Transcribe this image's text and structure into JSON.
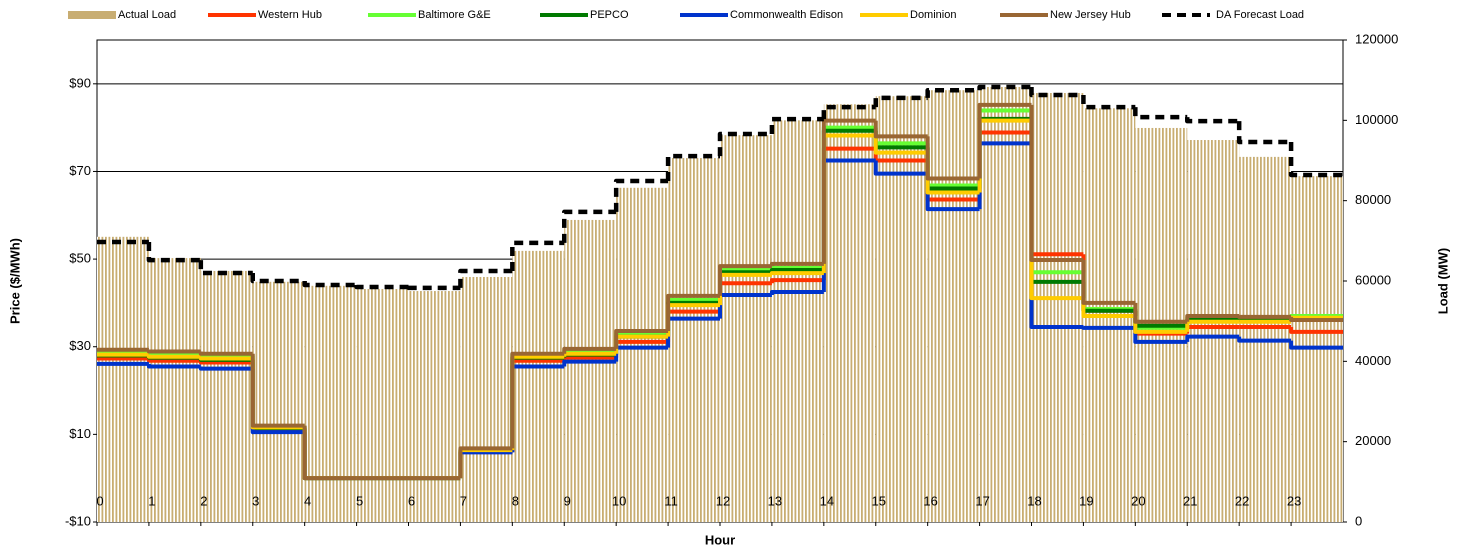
{
  "chart_data": {
    "type": "step",
    "xlabel": "Hour",
    "ylabel": "Price ($/MWh)",
    "y2label": "Load (MW)",
    "x": [
      0,
      1,
      2,
      3,
      4,
      5,
      6,
      7,
      8,
      9,
      10,
      11,
      12,
      13,
      14,
      15,
      16,
      17,
      18,
      19,
      20,
      21,
      22,
      23
    ],
    "xlim": [
      0,
      24
    ],
    "xticks": [
      0,
      1,
      2,
      3,
      4,
      5,
      6,
      7,
      8,
      9,
      10,
      11,
      12,
      13,
      14,
      15,
      16,
      17,
      18,
      19,
      20,
      21,
      22,
      23
    ],
    "ylim": [
      -10,
      100
    ],
    "yticks": [
      {
        "value": -10,
        "label": "-$10"
      },
      {
        "value": 10,
        "label": "$10"
      },
      {
        "value": 30,
        "label": "$30"
      },
      {
        "value": 50,
        "label": "$50"
      },
      {
        "value": 70,
        "label": "$70"
      },
      {
        "value": 90,
        "label": "$90"
      }
    ],
    "y2lim": [
      0,
      120000
    ],
    "y2ticks": [
      0,
      20000,
      40000,
      60000,
      80000,
      100000,
      120000
    ],
    "grid": true,
    "legend": "top",
    "series": [
      {
        "name": "Actual Load",
        "color": "#c8ad72",
        "type": "bar",
        "axis": "y2",
        "values": [
          71000,
          65700,
          62500,
          59800,
          58800,
          58000,
          57500,
          61000,
          67500,
          75200,
          83200,
          90600,
          96300,
          100000,
          104000,
          106000,
          107500,
          108300,
          106800,
          103000,
          98100,
          95100,
          90900,
          86100
        ]
      },
      {
        "name": "Western Hub",
        "color": "#ff3300",
        "values": [
          27.3,
          26.8,
          26.4,
          11.1,
          0,
          0,
          0,
          6.1,
          26.8,
          27.5,
          31.1,
          38.0,
          44.5,
          45.2,
          75.2,
          72.5,
          63.6,
          78.9,
          51.1,
          38.2,
          33.0,
          34.5,
          34.5,
          33.4
        ]
      },
      {
        "name": "Baltimore G&E",
        "color": "#66ff33",
        "values": [
          28.9,
          28.4,
          28.0,
          11.8,
          0,
          0,
          0,
          6.6,
          28.2,
          29.1,
          33.0,
          40.7,
          47.5,
          48.0,
          80.0,
          76.4,
          66.8,
          83.9,
          47.0,
          38.6,
          34.3,
          36.6,
          36.4,
          37.0
        ]
      },
      {
        "name": "PEPCO",
        "color": "#007a00",
        "values": [
          28.0,
          27.5,
          27.0,
          11.4,
          0,
          0,
          0,
          6.4,
          27.5,
          28.2,
          32.3,
          40.0,
          47.0,
          47.5,
          79.3,
          75.5,
          66.1,
          82.0,
          44.8,
          38.2,
          34.8,
          36.1,
          36.1,
          36.1
        ]
      },
      {
        "name": "Commonwealth Edison",
        "color": "#0033cc",
        "values": [
          26.1,
          25.5,
          25.0,
          10.5,
          0,
          0,
          0,
          5.9,
          25.5,
          26.6,
          29.8,
          36.4,
          41.8,
          42.5,
          72.5,
          69.5,
          61.4,
          76.4,
          34.5,
          34.3,
          31.1,
          32.3,
          31.4,
          29.8
        ]
      },
      {
        "name": "Dominion",
        "color": "#ffcc00",
        "values": [
          28.2,
          27.7,
          27.3,
          11.6,
          0,
          0,
          0,
          6.4,
          27.7,
          28.4,
          32.3,
          39.5,
          46.4,
          46.8,
          78.2,
          74.3,
          65.2,
          81.6,
          41.1,
          37.0,
          33.4,
          35.7,
          35.7,
          36.6
        ]
      },
      {
        "name": "New Jersey Hub",
        "color": "#996633",
        "values": [
          29.3,
          28.9,
          28.4,
          12.0,
          0,
          0,
          0,
          6.8,
          28.4,
          29.5,
          33.6,
          41.6,
          48.4,
          48.9,
          81.6,
          78.0,
          68.4,
          85.2,
          49.8,
          40.0,
          35.7,
          37.0,
          36.8,
          36.1
        ]
      },
      {
        "name": "DA Forecast Load",
        "color": "#000000",
        "style": "dashed",
        "axis": "y2",
        "values": [
          69700,
          65200,
          62000,
          60000,
          59000,
          58500,
          58300,
          62500,
          69500,
          77200,
          84900,
          91100,
          96600,
          100300,
          103300,
          105600,
          107500,
          108300,
          106300,
          103300,
          100800,
          99800,
          94600,
          86400
        ]
      }
    ]
  }
}
